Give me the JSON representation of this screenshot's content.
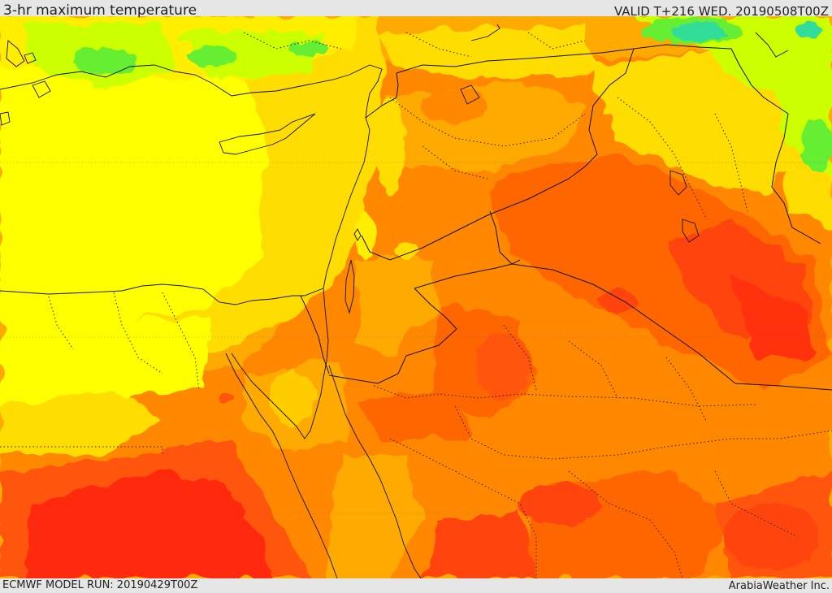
{
  "header": {
    "title": "3-hr maximum temperature",
    "valid_time": "VALID T+216 WED. 20190508T00Z"
  },
  "footer": {
    "model_run": "ECMWF MODEL RUN: 20190429T00Z",
    "credit": "ArabiaWeather Inc."
  },
  "map": {
    "region": "Eastern Mediterranean and Middle East",
    "palette": {
      "cyan": "#33dd99",
      "green": "#66ee33",
      "lime": "#ccff00",
      "yellow": "#ffff00",
      "gold": "#ffdd00",
      "amber": "#ffaa00",
      "orange": "#ff8800",
      "deep-orange": "#ff6600",
      "red-orange": "#ff4411",
      "red": "#ff2a10"
    },
    "boundary_color": "#111111"
  }
}
